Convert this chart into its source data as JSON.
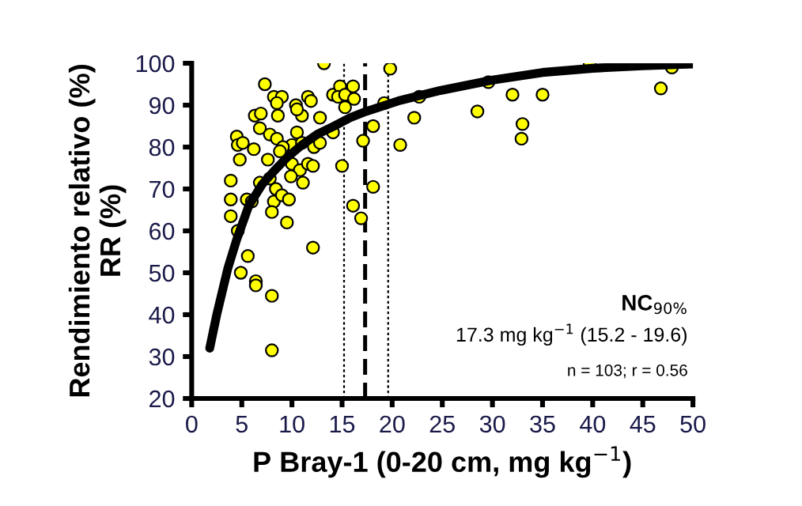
{
  "chart_data": {
    "type": "scatter",
    "xlabel": "P Bray-1 (0-20 cm, mg kg$^{−1}$)",
    "ylabel": "Rendimiento relativo (%)\nRR (%)",
    "xlim": [
      0,
      50
    ],
    "xticks": [
      0,
      5,
      10,
      15,
      20,
      25,
      30,
      35,
      40,
      45,
      50
    ],
    "ylim": [
      20,
      100
    ],
    "yticks": [
      20,
      30,
      40,
      50,
      60,
      70,
      80,
      90,
      100
    ],
    "grid": false,
    "legend": false,
    "marker": "circle",
    "series": [
      {
        "color": "#ffff00",
        "x": [
          13.2,
          19.8,
          7.3,
          8.2,
          9.0,
          8.5,
          10.4,
          11.6,
          11.9,
          11.0,
          10.5,
          6.3,
          6.9,
          8.6,
          12.8,
          14.1,
          14.8,
          14.6,
          15.3,
          16.1,
          16.2,
          15.3,
          19.2,
          22.7,
          22.2,
          28.5,
          29.6,
          18.1,
          14.1,
          6.8,
          7.8,
          8.5,
          10.5,
          4.5,
          4.6,
          5.1,
          6.2,
          10.0,
          9.1,
          8.8,
          11.0,
          12.2,
          12.8,
          17.1,
          20.8,
          4.8,
          7.6,
          10.0,
          10.8,
          11.6,
          12.1,
          15.0,
          3.9,
          6.8,
          7.8,
          9.9,
          11.1,
          8.4,
          18.1,
          3.9,
          5.5,
          6.0,
          8.2,
          9.0,
          9.7,
          16.1,
          3.9,
          8.0,
          9.5,
          16.9,
          4.6,
          12.1,
          5.6,
          4.9,
          6.4,
          6.4,
          8.0,
          8.0,
          32.0,
          35.0,
          33.0,
          32.9,
          39.7,
          47.9,
          46.8
        ],
        "values": [
          100,
          98.7,
          95,
          92,
          92,
          90.5,
          90,
          92,
          91,
          87.5,
          89,
          87.5,
          88,
          87.5,
          87,
          92.5,
          94.5,
          92,
          92.5,
          94.5,
          91.5,
          89.5,
          90.5,
          92,
          87,
          88.5,
          95.5,
          85,
          83.5,
          84.5,
          83,
          82,
          83.5,
          82.5,
          80.5,
          81,
          79.5,
          80.5,
          80,
          79,
          81,
          80,
          81,
          81.5,
          80.5,
          77,
          77,
          76,
          74.5,
          76,
          75.5,
          75.5,
          72,
          71.5,
          72.5,
          73,
          71.5,
          70,
          70.5,
          67.5,
          67.5,
          67,
          67,
          68.5,
          67.5,
          66,
          63.5,
          64.5,
          62,
          63,
          60,
          56,
          54,
          50,
          48,
          47,
          44.5,
          31.5,
          92.5,
          92.5,
          85.5,
          82,
          100,
          99,
          94
        ]
      },
      {
        "type": "line",
        "color": "#000000",
        "marker": "none",
        "line_style": "solid",
        "x": [
          1.8,
          2.5,
          3.6,
          4.5,
          5.7,
          7,
          8.1,
          9.5,
          11,
          12.5,
          14.2,
          15.8,
          17.4,
          20.6,
          24.8,
          30,
          35,
          40,
          45,
          50
        ],
        "values": [
          32,
          40,
          51,
          58,
          66,
          71,
          74,
          77.5,
          80.5,
          83,
          85,
          87,
          88.5,
          91,
          93.5,
          96,
          97.8,
          98.8,
          99.4,
          99.8
        ]
      }
    ],
    "ref_lines": [
      {
        "axis": "x",
        "value": 15.2,
        "line_style": "dotted",
        "color": "#000000"
      },
      {
        "axis": "x",
        "value": 17.3,
        "line_style": "dashed",
        "color": "#000000"
      },
      {
        "axis": "x",
        "value": 19.6,
        "line_style": "dotted",
        "color": "#000000"
      }
    ],
    "annotations": [
      "NC$_{90%}$",
      "17.3 mg kg$^{−1}$ (15.2 - 19.6)",
      "n = 103; r = 0.56"
    ]
  }
}
